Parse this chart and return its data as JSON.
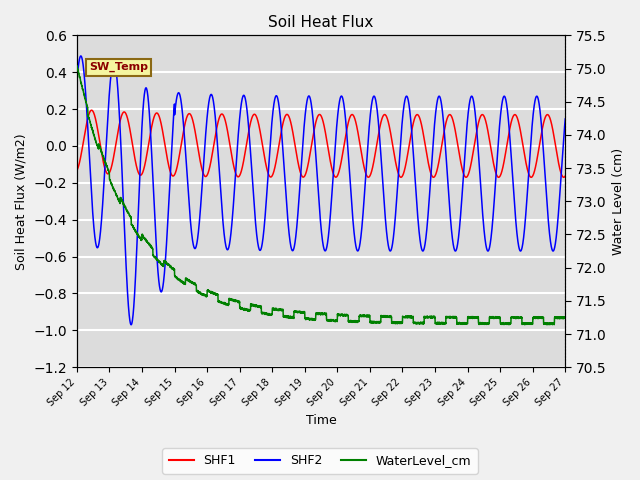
{
  "title": "Soil Heat Flux",
  "ylabel_left": "Soil Heat Flux (W/m2)",
  "ylabel_right": "Water Level (cm)",
  "xlabel": "Time",
  "ylim_left": [
    -1.2,
    0.6
  ],
  "ylim_right": [
    70.5,
    75.5
  ],
  "yticks_left": [
    -1.2,
    -1.0,
    -0.8,
    -0.6,
    -0.4,
    -0.2,
    0.0,
    0.2,
    0.4,
    0.6
  ],
  "yticks_right": [
    70.5,
    71.0,
    71.5,
    72.0,
    72.5,
    73.0,
    73.5,
    74.0,
    74.5,
    75.0,
    75.5
  ],
  "xtick_labels": [
    "Sep 12",
    "Sep 13",
    "Sep 14",
    "Sep 15",
    "Sep 16",
    "Sep 17",
    "Sep 18",
    "Sep 19",
    "Sep 20",
    "Sep 21",
    "Sep 22",
    "Sep 23",
    "Sep 24",
    "Sep 25",
    "Sep 26",
    "Sep 27"
  ],
  "color_shf1": "red",
  "color_shf2": "blue",
  "color_water": "green",
  "legend_label_shf1": "SHF1",
  "legend_label_shf2": "SHF2",
  "legend_label_water": "WaterLevel_cm",
  "annotation_label": "SW_Temp",
  "bg_color": "#dcdcdc",
  "plot_bg_color": "#f0f0f0",
  "grid_color": "white",
  "figsize": [
    6.4,
    4.8
  ],
  "dpi": 100
}
